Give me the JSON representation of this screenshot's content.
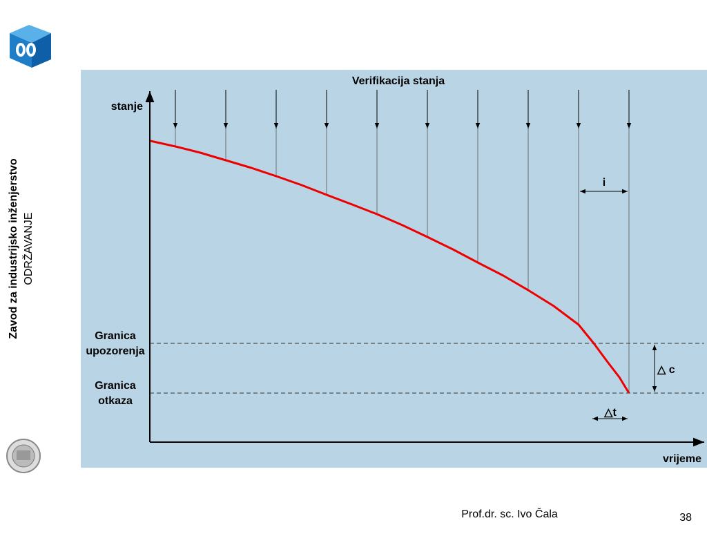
{
  "sidebar": {
    "institute": "Zavod za industrijsko inženjerstvo",
    "course": "ODRŽAVANJE"
  },
  "diagram": {
    "title": "Verifikacija stanja",
    "y_label": "stanje",
    "x_label": "vrijeme",
    "warning_limit": [
      "Granica",
      "upozorenja"
    ],
    "failure_limit": [
      "Granica",
      "otkaza"
    ],
    "interval": "i",
    "delta_c": "△ c",
    "delta_t": "△t"
  },
  "footer": {
    "author": "Prof.dr. sc. Ivo Čala",
    "page": "38"
  }
}
